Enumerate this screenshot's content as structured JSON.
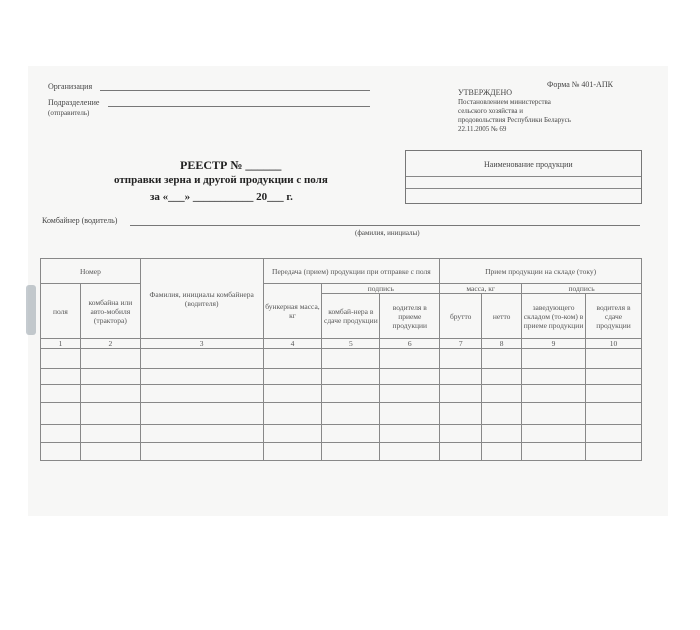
{
  "header": {
    "org_label": "Организация",
    "division_label": "Подразделение",
    "sender_label": "(отправитель)",
    "form_no": "Форма № 401-АПК",
    "approved": "УТВЕРЖДЕНО",
    "approved_lines": [
      "Постановлением министерства",
      "сельского хозяйства и",
      "продовольствия Республики Беларусь",
      "22.11.2005 № 69"
    ]
  },
  "title": {
    "line1": "РЕЕСТР № ______",
    "line2": "отправки зерна и другой продукции с поля",
    "line3": "за «___» ___________ 20___ г."
  },
  "product_box": {
    "label": "Наименование продукции"
  },
  "driver": {
    "label": "Комбайнер (водитель)",
    "hint": "(фамилия, инициалы)"
  },
  "table": {
    "h_number": "Номер",
    "h_name": "Фамилия, инициалы комбайнера (водителя)",
    "h_transfer": "Передача (прием) продукции при отправке с поля",
    "h_receive": "Прием продукции на складе (току)",
    "h_sign1": "подпись",
    "h_mass": "масса, кг",
    "h_sign2": "подпись",
    "c_field": "поля",
    "c_combine": "комбайна или авто-мобиля (трактора)",
    "c_bunker": "бункерная масса, кг",
    "c_combiner_sign": "комбай-нера в сдаче продукции",
    "c_driver_accept": "водителя в приеме продукции",
    "c_gross": "брутто",
    "c_net": "нетто",
    "c_manager": "заведующего складом (то-ком) в приеме продукции",
    "c_driver_hand": "водителя в сдаче продукции",
    "numbers": [
      "1",
      "2",
      "3",
      "4",
      "5",
      "6",
      "7",
      "8",
      "9",
      "10"
    ]
  }
}
